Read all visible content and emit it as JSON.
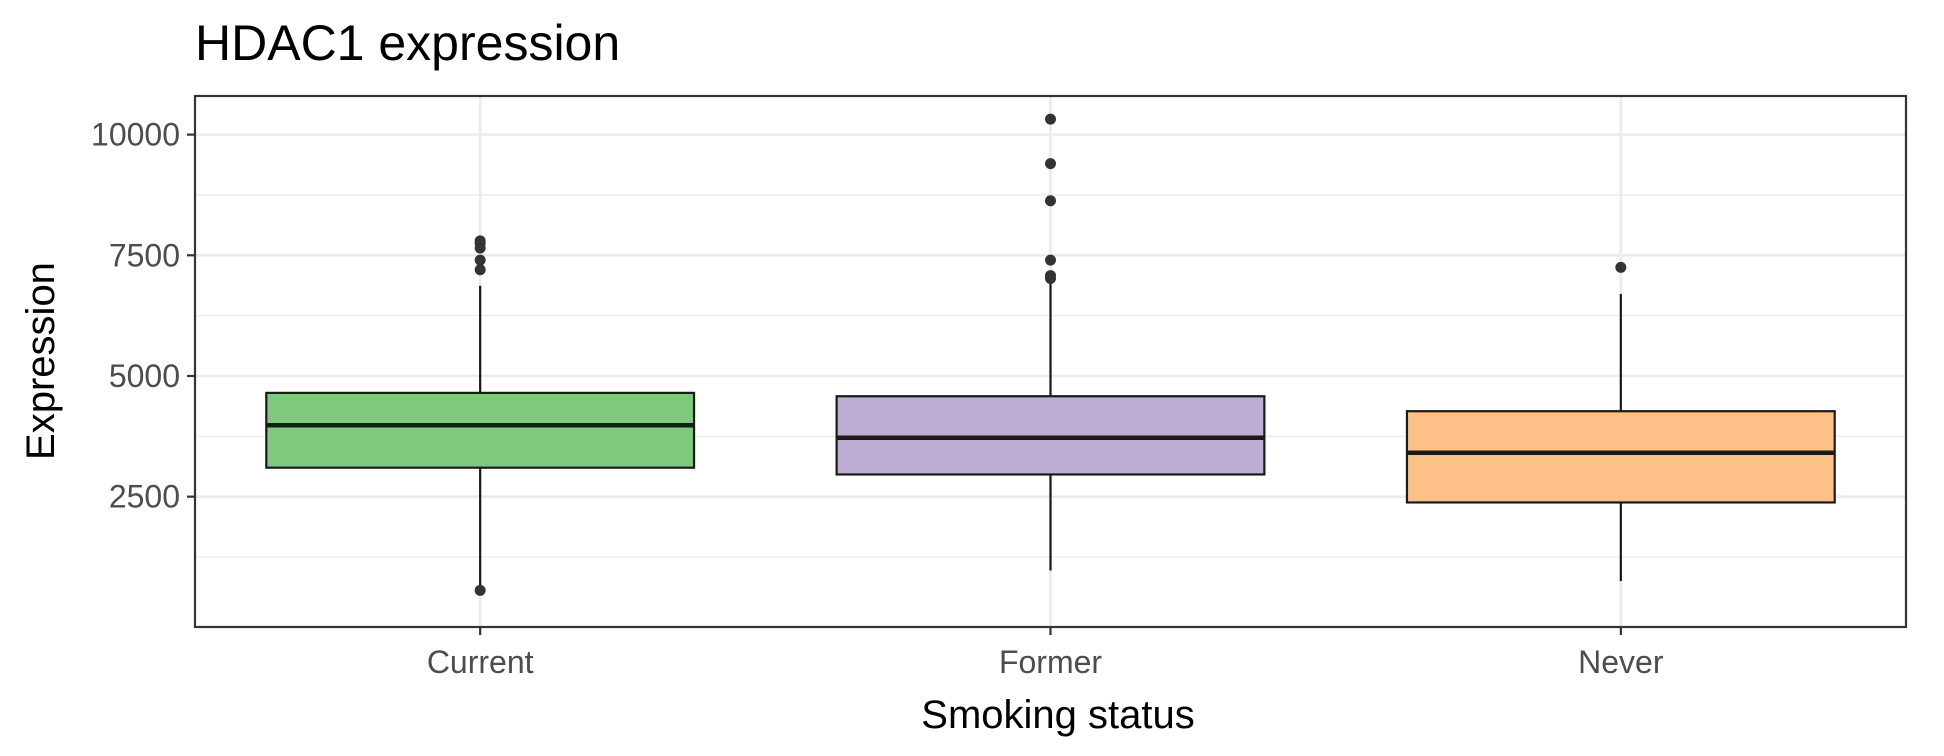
{
  "chart_data": {
    "type": "boxplot",
    "title": "HDAC1 expression",
    "xlabel": "Smoking status",
    "ylabel": "Expression",
    "ylim": [
      -200,
      10800
    ],
    "yticks": [
      2500,
      5000,
      7500,
      10000
    ],
    "ytick_labels": [
      "2500",
      "5000",
      "7500",
      "10000"
    ],
    "minor_yticks": [
      1250,
      3750,
      6250,
      8750
    ],
    "grid": true,
    "legend": "none",
    "categories": [
      "Current",
      "Former",
      "Never"
    ],
    "boxes": [
      {
        "category": "Current",
        "color": "#7fc97f",
        "q1": 3100,
        "median": 3980,
        "q3": 4650,
        "whisker_low": 650,
        "whisker_high": 6870,
        "outliers": [
          7800,
          7750,
          7650,
          7400,
          7200,
          560
        ]
      },
      {
        "category": "Former",
        "color": "#beaed4",
        "q1": 2960,
        "median": 3720,
        "q3": 4580,
        "whisker_low": 970,
        "whisker_high": 6920,
        "outliers": [
          10320,
          9400,
          8630,
          7400,
          7080,
          7020
        ]
      },
      {
        "category": "Never",
        "color": "#fdc086",
        "q1": 2380,
        "median": 3410,
        "q3": 4270,
        "whisker_low": 750,
        "whisker_high": 6700,
        "outliers": [
          7250
        ]
      }
    ]
  }
}
